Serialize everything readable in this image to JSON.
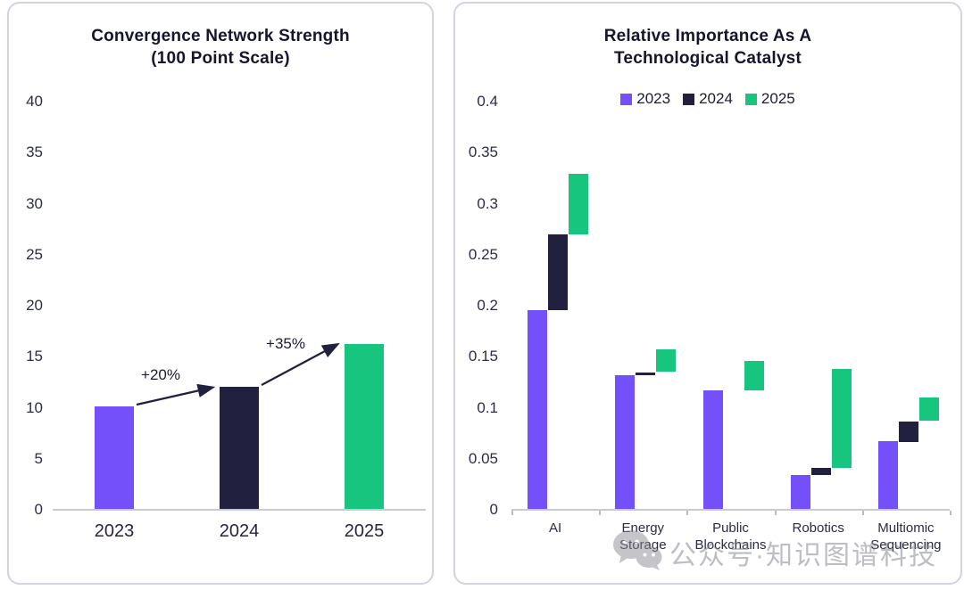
{
  "palette": {
    "purple": "#7450FA",
    "navy": "#21213F",
    "green": "#18C57F",
    "title_text": "#15152E",
    "axis_text": "#2C2C48",
    "baseline": "#C9CAD8",
    "card_border": "#D2D3E0",
    "watermark_gray": "#7E7E8A"
  },
  "watermark": {
    "icon": "wechat-icon",
    "text": "公众号·知识图谱科技"
  },
  "chart_data": [
    {
      "id": "convergence-network-strength",
      "type": "bar",
      "title": "Convergence Network Strength (100 Point Scale)",
      "title_lines": [
        "Convergence Network Strength",
        "(100 Point Scale)"
      ],
      "categories": [
        "2023",
        "2024",
        "2025"
      ],
      "values": [
        10,
        12,
        16.2
      ],
      "bar_color_names": [
        "purple",
        "navy",
        "green"
      ],
      "annotations": [
        {
          "label": "+20%",
          "from_index": 0,
          "to_index": 1
        },
        {
          "label": "+35%",
          "from_index": 1,
          "to_index": 2
        }
      ],
      "xlabel": "",
      "ylabel": "",
      "ylim": [
        0,
        40
      ],
      "y_ticks": [
        0,
        5,
        10,
        15,
        20,
        25,
        30,
        35,
        40
      ],
      "y_tick_labels": [
        "0",
        "5",
        "10",
        "15",
        "20",
        "25",
        "30",
        "35",
        "40"
      ],
      "grid": false,
      "legend": null
    },
    {
      "id": "relative-importance-technological-catalyst",
      "type": "floating-bar",
      "title": "Relative Importance As A Technological Catalyst",
      "title_lines": [
        "Relative Importance As A",
        "Technological Catalyst"
      ],
      "categories": [
        "AI",
        "Energy Storage",
        "Public Blockchains",
        "Robotics",
        "Multiomic Sequencing"
      ],
      "category_label_lines": [
        [
          "AI"
        ],
        [
          "Energy",
          "Storage"
        ],
        [
          "Public",
          "Blockchains"
        ],
        [
          "Robotics"
        ],
        [
          "Multiomic",
          "Sequencing"
        ]
      ],
      "series": [
        {
          "name": "2023",
          "color_name": "purple",
          "values": [
            0.195,
            0.131,
            0.116,
            0.033,
            0.066
          ]
        },
        {
          "name": "2024",
          "color_name": "navy",
          "values": [
            0.269,
            0.134,
            0.116,
            0.04,
            0.086
          ]
        },
        {
          "name": "2025",
          "color_name": "green",
          "values": [
            0.328,
            0.156,
            0.145,
            0.137,
            0.109
          ]
        }
      ],
      "bar_semantics": "waterfall-style floating bars: each year's bar spans from previous year's value up to its own value; 2023 bars start at 0",
      "xlabel": "",
      "ylabel": "",
      "ylim": [
        0,
        0.4
      ],
      "y_ticks": [
        0,
        0.05,
        0.1,
        0.15,
        0.2,
        0.25,
        0.3,
        0.35,
        0.4
      ],
      "y_tick_labels": [
        "0",
        "0.05",
        "0.1",
        "0.15",
        "0.2",
        "0.25",
        "0.3",
        "0.35",
        "0.4"
      ],
      "grid": false,
      "legend": {
        "position": "top",
        "entries": [
          "2023",
          "2024",
          "2025"
        ]
      }
    }
  ]
}
